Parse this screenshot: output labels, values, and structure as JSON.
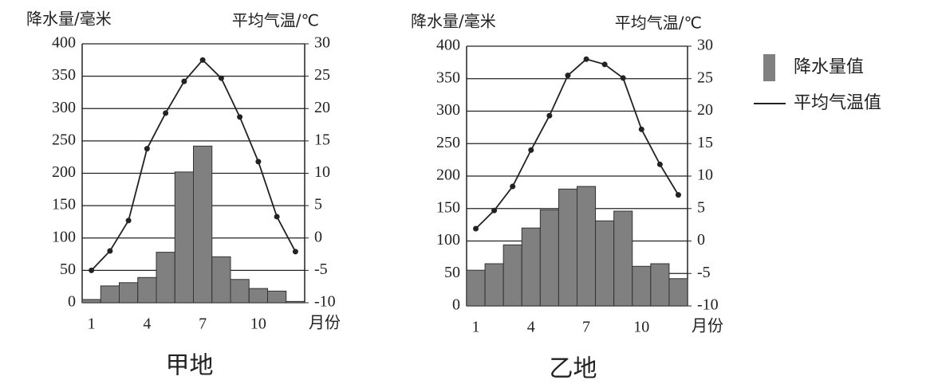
{
  "chart_data": [
    {
      "type": "combo",
      "title": "甲地",
      "y_label": "降水量/毫米",
      "y2_label": "平均气温/℃",
      "x_label": "月份",
      "categories": [
        "1",
        null,
        null,
        "4",
        null,
        null,
        "7",
        null,
        null,
        "10",
        null,
        null
      ],
      "series": [
        {
          "kind": "bar",
          "color": "#808080",
          "values": [
            5,
            26,
            31,
            39,
            78,
            202,
            242,
            71,
            36,
            22,
            18,
            2
          ]
        },
        {
          "kind": "line",
          "axis": "y2",
          "color": "#222222",
          "values": [
            -5,
            -2,
            2.7,
            13.8,
            19.3,
            24.2,
            27.5,
            24.7,
            18.7,
            11.8,
            3.3,
            -2.1
          ]
        }
      ],
      "ylim": [
        0,
        400
      ],
      "yticks": [
        0,
        50,
        100,
        150,
        200,
        250,
        300,
        350,
        400
      ],
      "y2lim": [
        -10,
        30
      ],
      "y2ticks": [
        -10,
        -5,
        0,
        5,
        10,
        15,
        20,
        25,
        30
      ],
      "grid": true
    },
    {
      "type": "combo",
      "title": "乙地",
      "y_label": "降水量/毫米",
      "y2_label": "平均气温/℃",
      "x_label": "月份",
      "categories": [
        "1",
        null,
        null,
        "4",
        null,
        null,
        "7",
        null,
        null,
        "10",
        null,
        null
      ],
      "series": [
        {
          "kind": "bar",
          "color": "#808080",
          "values": [
            55,
            65,
            94,
            120,
            148,
            180,
            184,
            131,
            146,
            61,
            65,
            42
          ]
        },
        {
          "kind": "line",
          "axis": "y2",
          "color": "#222222",
          "values": [
            1.9,
            4.7,
            8.4,
            14,
            19.3,
            25.5,
            28,
            27.2,
            25.1,
            17.2,
            11.8,
            7.1
          ]
        }
      ],
      "ylim": [
        0,
        400
      ],
      "yticks": [
        0,
        50,
        100,
        150,
        200,
        250,
        300,
        350,
        400
      ],
      "y2lim": [
        -10,
        30
      ],
      "y2ticks": [
        -10,
        -5,
        0,
        5,
        10,
        15,
        20,
        25,
        30
      ],
      "grid": true
    }
  ],
  "legend": [
    {
      "label": "降水量值",
      "kind": "bar",
      "color": "#808080"
    },
    {
      "label": "平均气温值",
      "kind": "line",
      "color": "#222222"
    }
  ]
}
